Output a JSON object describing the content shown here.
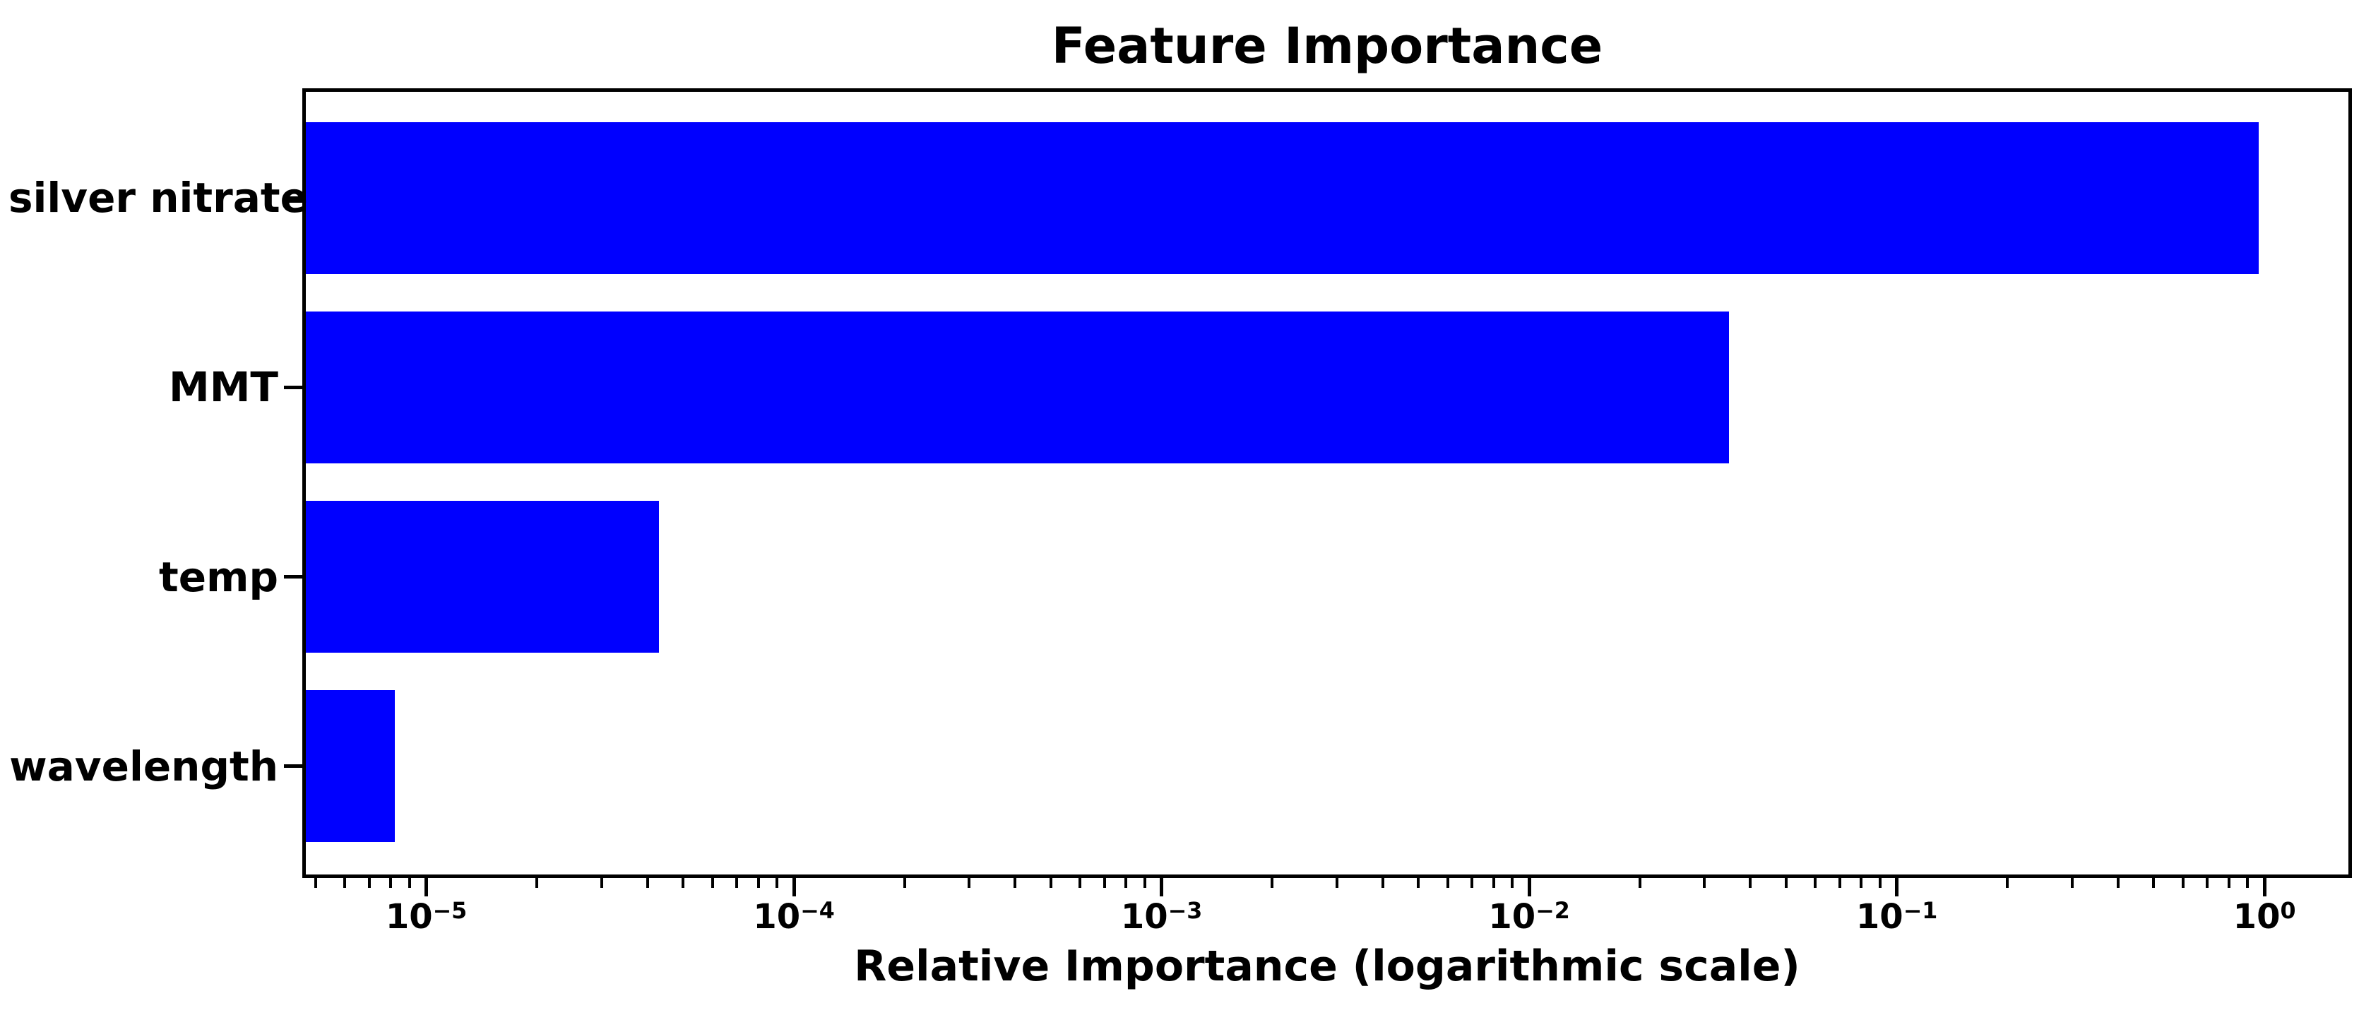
{
  "chart_data": {
    "type": "bar",
    "orientation": "horizontal",
    "title": "Feature Importance",
    "xlabel": "Relative Importance (logarithmic scale)",
    "ylabel": "",
    "categories": [
      "silver nitrate",
      "MMT",
      "temp",
      "wavelength"
    ],
    "values": [
      0.965,
      0.0349,
      4.3e-05,
      8.2e-06
    ],
    "bar_color": "#0000ff",
    "x_scale": "log",
    "xlim": [
      4.6e-06,
      1.73
    ],
    "xticks": [
      {
        "value": 1e-05,
        "exponent": -5
      },
      {
        "value": 0.0001,
        "exponent": -4
      },
      {
        "value": 0.001,
        "exponent": -3
      },
      {
        "value": 0.01,
        "exponent": -2
      },
      {
        "value": 0.1,
        "exponent": -1
      },
      {
        "value": 1,
        "exponent": 0
      }
    ],
    "minor_ticks_per_decade": [
      2,
      3,
      4,
      5,
      6,
      7,
      8,
      9
    ],
    "minor_tick_decades": [
      -6,
      -5,
      -4,
      -3,
      -2,
      -1,
      0
    ],
    "grid": false,
    "legend": false,
    "axis_color": "#000000",
    "text_color": "#000000"
  }
}
